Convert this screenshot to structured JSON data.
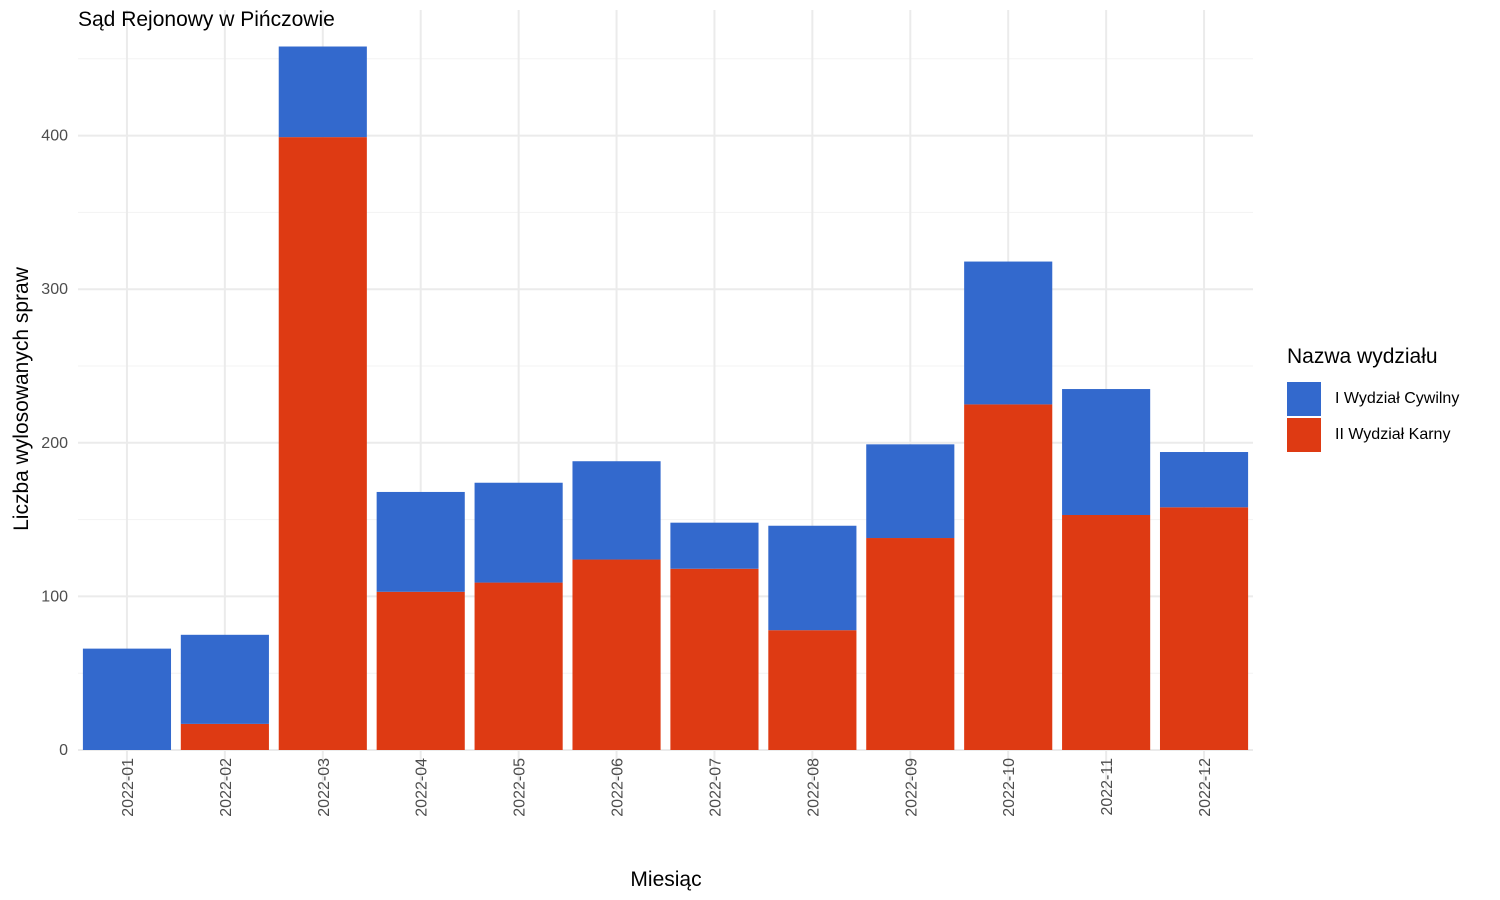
{
  "chart_data": {
    "type": "bar",
    "stacked": true,
    "title": "Sąd Rejonowy w Pińczowie",
    "xlabel": "Miesiąc",
    "ylabel": "Liczba wylosowanych spraw",
    "ylim": [
      0,
      460
    ],
    "yticks": [
      0,
      100,
      200,
      300,
      400
    ],
    "grid": true,
    "legend_position": "right",
    "legend_title": "Nazwa wydziału",
    "categories": [
      "2022-01",
      "2022-02",
      "2022-03",
      "2022-04",
      "2022-05",
      "2022-06",
      "2022-07",
      "2022-08",
      "2022-09",
      "2022-10",
      "2022-11",
      "2022-12"
    ],
    "series": [
      {
        "name": "I Wydział Cywilny",
        "color": "#3369CD",
        "values": [
          66,
          58,
          59,
          65,
          65,
          64,
          30,
          68,
          61,
          93,
          82,
          36
        ]
      },
      {
        "name": "II Wydział Karny",
        "color": "#DE3A13",
        "values": [
          0,
          17,
          399,
          103,
          109,
          124,
          118,
          78,
          138,
          225,
          153,
          158
        ]
      }
    ]
  }
}
